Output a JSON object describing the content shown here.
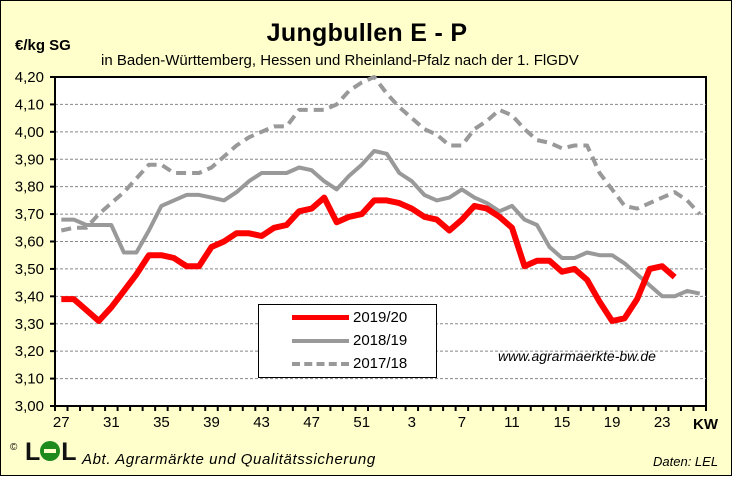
{
  "chart_data": {
    "type": "line",
    "title": "Jungbullen E - P",
    "subtitle": "in Baden-Württemberg, Hessen und Rheinland-Pfalz  nach der 1. FlGDV",
    "ylabel": "€/kg SG",
    "xlabel": "KW",
    "ylim": [
      3.0,
      4.2
    ],
    "yticks": [
      "3,00",
      "3,10",
      "3,20",
      "3,30",
      "3,40",
      "3,50",
      "3,60",
      "3,70",
      "3,80",
      "3,90",
      "4,00",
      "4,10",
      "4,20"
    ],
    "xtick_labels": [
      "27",
      "31",
      "35",
      "39",
      "43",
      "47",
      "51",
      "3",
      "7",
      "11",
      "15",
      "19",
      "23"
    ],
    "x": [
      27,
      28,
      29,
      30,
      31,
      32,
      33,
      34,
      35,
      36,
      37,
      38,
      39,
      40,
      41,
      42,
      43,
      44,
      45,
      46,
      47,
      48,
      49,
      50,
      51,
      52,
      1,
      2,
      3,
      4,
      5,
      6,
      7,
      8,
      9,
      10,
      11,
      12,
      13,
      14,
      15,
      16,
      17,
      18,
      19,
      20,
      21,
      22,
      23,
      24,
      25,
      26
    ],
    "grid": true,
    "legend_position": "bottom-left-center",
    "series": [
      {
        "name": "2019/20",
        "color": "#ff0000",
        "style": "solid-thick",
        "values": [
          3.39,
          3.39,
          3.35,
          3.31,
          3.36,
          3.42,
          3.48,
          3.55,
          3.55,
          3.54,
          3.51,
          3.51,
          3.58,
          3.6,
          3.63,
          3.63,
          3.62,
          3.65,
          3.66,
          3.71,
          3.72,
          3.76,
          3.67,
          3.69,
          3.7,
          3.75,
          3.75,
          3.74,
          3.72,
          3.69,
          3.68,
          3.64,
          3.68,
          3.73,
          3.72,
          3.69,
          3.65,
          3.51,
          3.53,
          3.53,
          3.49,
          3.5,
          3.46,
          3.38,
          3.31,
          3.32,
          3.39,
          3.5,
          3.51,
          3.47,
          null,
          null
        ]
      },
      {
        "name": "2018/19",
        "color": "#999999",
        "style": "solid",
        "values": [
          3.68,
          3.68,
          3.66,
          3.66,
          3.66,
          3.56,
          3.56,
          3.64,
          3.73,
          3.75,
          3.77,
          3.77,
          3.76,
          3.75,
          3.78,
          3.82,
          3.85,
          3.85,
          3.85,
          3.87,
          3.86,
          3.82,
          3.79,
          3.84,
          3.88,
          3.93,
          3.92,
          3.85,
          3.82,
          3.77,
          3.75,
          3.76,
          3.79,
          3.76,
          3.74,
          3.71,
          3.73,
          3.68,
          3.66,
          3.58,
          3.54,
          3.54,
          3.56,
          3.55,
          3.55,
          3.52,
          3.48,
          3.44,
          3.4,
          3.4,
          3.42,
          3.41
        ]
      },
      {
        "name": "2017/18",
        "color": "#999999",
        "style": "dashed",
        "values": [
          3.64,
          3.65,
          3.65,
          3.7,
          3.74,
          3.78,
          3.83,
          3.88,
          3.88,
          3.85,
          3.85,
          3.85,
          3.87,
          3.91,
          3.95,
          3.98,
          4.0,
          4.02,
          4.02,
          4.08,
          4.08,
          4.08,
          4.1,
          4.15,
          4.18,
          4.2,
          4.14,
          4.09,
          4.05,
          4.01,
          3.99,
          3.95,
          3.95,
          4.01,
          4.04,
          4.08,
          4.06,
          4.01,
          3.97,
          3.96,
          3.94,
          3.95,
          3.95,
          3.85,
          3.79,
          3.73,
          3.72,
          3.74,
          3.76,
          3.78,
          3.75,
          3.7
        ]
      }
    ],
    "annotations": [
      "www.agrarmaerkte-bw.de"
    ]
  },
  "footer": {
    "copyright": "©",
    "logo_l1": "L",
    "logo_l2": "L",
    "department": "Abt. Agrarmärkte und Qualitätssicherung",
    "source": "Daten: LEL"
  }
}
